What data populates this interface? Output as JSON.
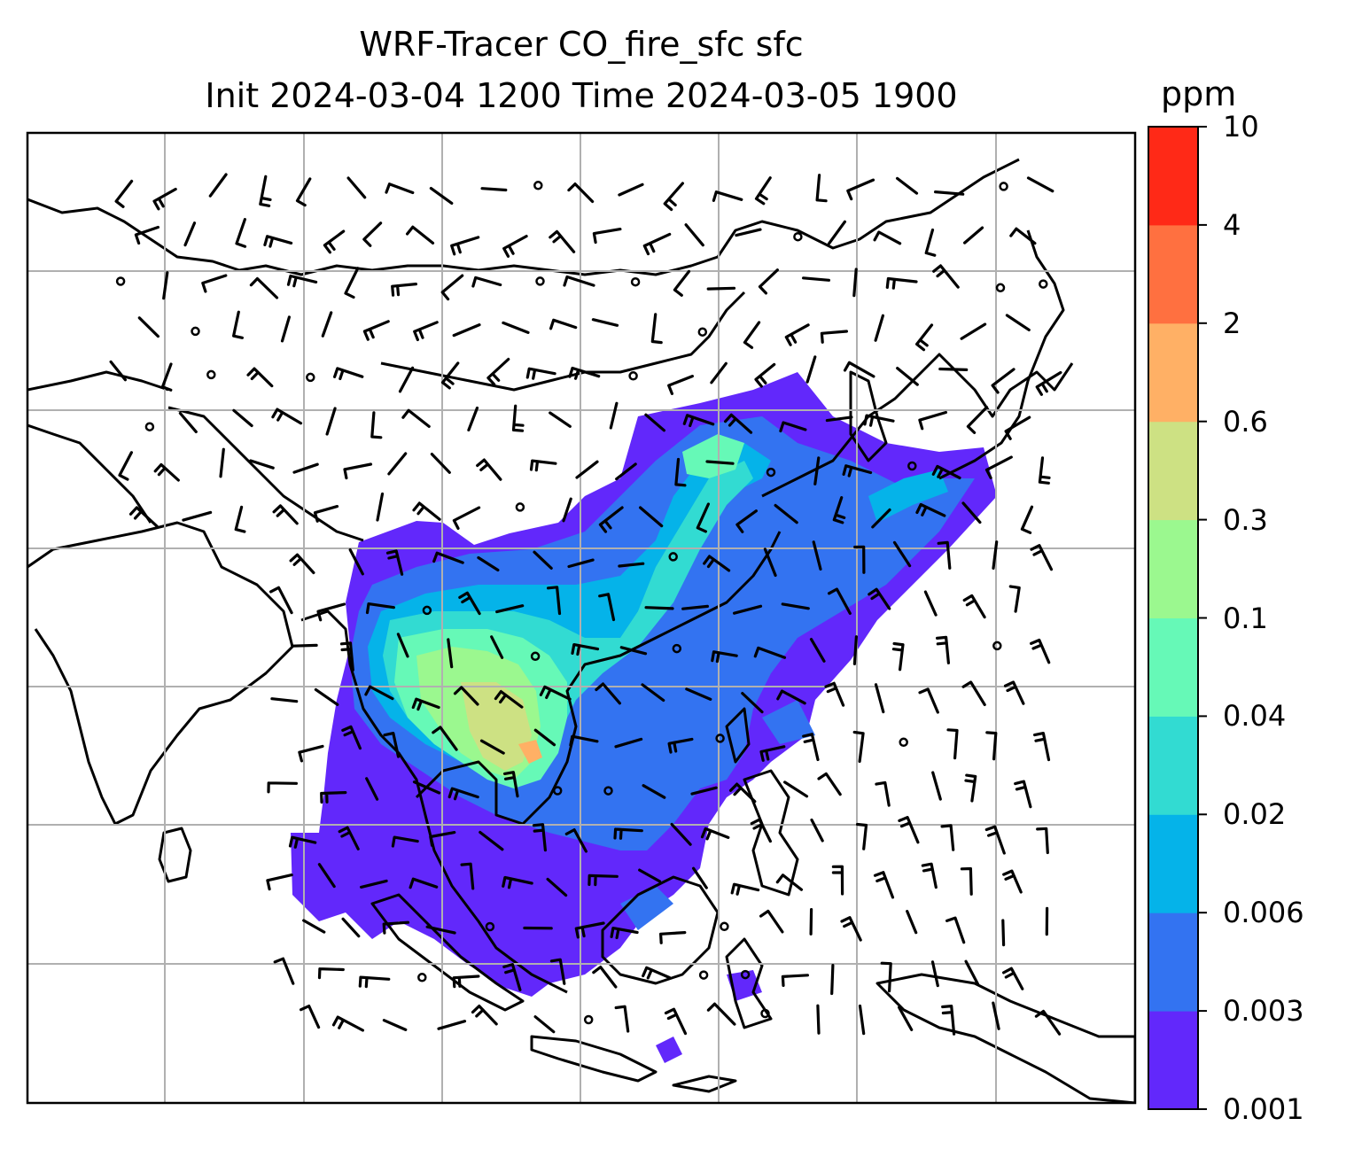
{
  "title": {
    "line1": "WRF-Tracer CO_fire_sfc sfc",
    "line2": "Init 2024-03-04 1200 Time 2024-03-05 1900"
  },
  "colorbar": {
    "unit": "ppm",
    "levels": [
      "0.001",
      "0.003",
      "0.006",
      "0.02",
      "0.04",
      "0.1",
      "0.3",
      "0.6",
      "2",
      "4",
      "10"
    ],
    "colors": [
      "#6228fb",
      "#3373f1",
      "#05b3e9",
      "#32dbd2",
      "#66f9b7",
      "#9bf88f",
      "#cde183",
      "#ffb065",
      "#ff7040",
      "#ff2917"
    ]
  },
  "map": {
    "plume_colors": {
      "low": "#6228fb",
      "mid": "#3373f1",
      "cyan": "#05b3e9",
      "teal": "#32dbd2",
      "green": "#66f9b7",
      "lightgreen": "#9bf88f",
      "yellow": "#cde183",
      "orange": "#ffb065"
    },
    "gridline_color": "#b0b0b0",
    "coastline_color": "#000000"
  }
}
